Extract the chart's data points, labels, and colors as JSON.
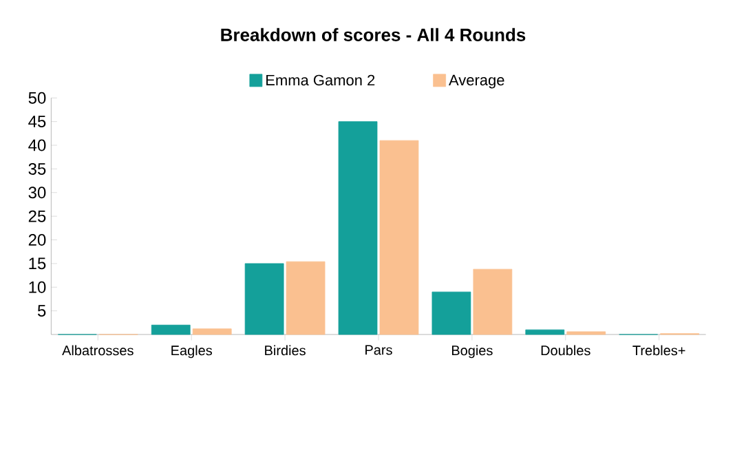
{
  "chart_data": {
    "type": "bar",
    "title": "Breakdown of scores - All 4 Rounds",
    "categories": [
      "Albatrosses",
      "Eagles",
      "Birdies",
      "Pars",
      "Bogies",
      "Doubles",
      "Trebles+"
    ],
    "series": [
      {
        "name": "Emma Gamon 2",
        "color": "#14a09a",
        "values": [
          0,
          2,
          15,
          45,
          9,
          1,
          0
        ]
      },
      {
        "name": "Average",
        "color": "#fac090",
        "values": [
          0,
          1.2,
          15.4,
          41,
          13.8,
          0.6,
          0.2
        ]
      }
    ],
    "ylim": [
      0,
      50
    ],
    "yticks": [
      5,
      10,
      15,
      20,
      25,
      30,
      35,
      40,
      45,
      50
    ],
    "grid": false,
    "legend": "top"
  }
}
